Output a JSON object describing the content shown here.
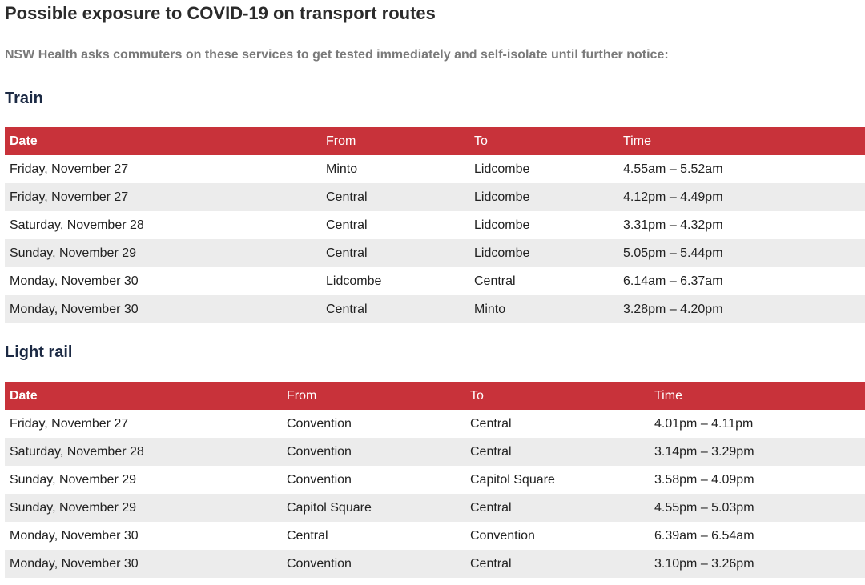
{
  "header": {
    "title": "Possible exposure to COVID-19 on transport routes",
    "subtitle": "NSW Health asks commuters on these services to get tested immediately and self-isolate until further notice:"
  },
  "train": {
    "heading": "Train",
    "columns": [
      "Date",
      "From",
      "To",
      "Time"
    ],
    "rows": [
      [
        "Friday, November 27",
        "Minto",
        "Lidcombe",
        "4.55am – 5.52am"
      ],
      [
        "Friday, November 27",
        "Central",
        "Lidcombe",
        "4.12pm – 4.49pm"
      ],
      [
        "Saturday, November 28",
        "Central",
        "Lidcombe",
        "3.31pm – 4.32pm"
      ],
      [
        "Sunday, November 29",
        "Central",
        "Lidcombe",
        "5.05pm – 5.44pm"
      ],
      [
        "Monday, November 30",
        "Lidcombe",
        "Central",
        "6.14am – 6.37am"
      ],
      [
        "Monday, November 30",
        "Central",
        "Minto",
        "3.28pm – 4.20pm"
      ]
    ]
  },
  "light_rail": {
    "heading": "Light rail",
    "columns": [
      "Date",
      "From",
      "To",
      "Time"
    ],
    "rows": [
      [
        "Friday, November 27",
        "Convention",
        "Central",
        "4.01pm – 4.11pm"
      ],
      [
        "Saturday, November 28",
        "Convention",
        "Central",
        "3.14pm – 3.29pm"
      ],
      [
        "Sunday, November 29",
        "Convention",
        "Capitol Square",
        "3.58pm – 4.09pm"
      ],
      [
        "Sunday, November 29",
        "Capitol Square",
        "Central",
        "4.55pm – 5.03pm"
      ],
      [
        "Monday, November 30",
        "Central",
        "Convention",
        "6.39am – 6.54am"
      ],
      [
        "Monday, November 30",
        "Convention",
        "Central",
        "3.10pm – 3.26pm"
      ]
    ]
  },
  "colors": {
    "header_bg": "#c8323a",
    "row_alt_bg": "#ececec",
    "heading_color": "#1c2a44",
    "subtitle_color": "#7a7a7a"
  }
}
